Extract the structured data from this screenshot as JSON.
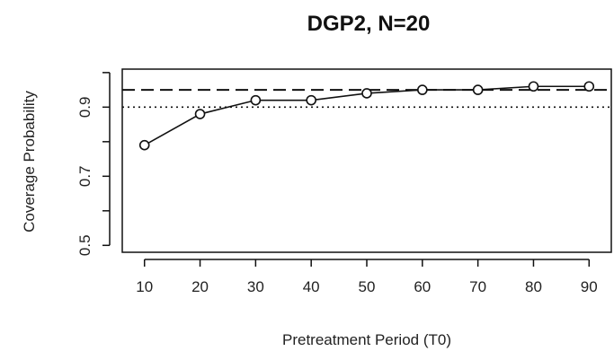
{
  "chart_data": {
    "type": "line",
    "title": "DGP2, N=20",
    "xlabel": "Pretreatment Period (T0)",
    "ylabel": "Coverage Probability",
    "x": [
      10,
      20,
      30,
      40,
      50,
      60,
      70,
      80,
      90
    ],
    "series": [
      {
        "values": [
          0.79,
          0.88,
          0.92,
          0.92,
          0.94,
          0.95,
          0.95,
          0.96,
          0.96
        ],
        "color": "#111111",
        "marker": "open-circle"
      }
    ],
    "reference_lines": [
      {
        "y": 0.95,
        "style": "dashed"
      },
      {
        "y": 0.9,
        "style": "dotted"
      }
    ],
    "xlim": [
      6,
      94
    ],
    "ylim": [
      0.48,
      1.01
    ],
    "xticks": [
      "10",
      "20",
      "30",
      "40",
      "50",
      "60",
      "70",
      "80",
      "90"
    ],
    "yticks": [
      "0.5",
      "0.7",
      "0.9"
    ],
    "yticks_unlabeled": [
      0.6,
      0.8,
      1.0
    ],
    "grid": false,
    "legend": "none"
  }
}
